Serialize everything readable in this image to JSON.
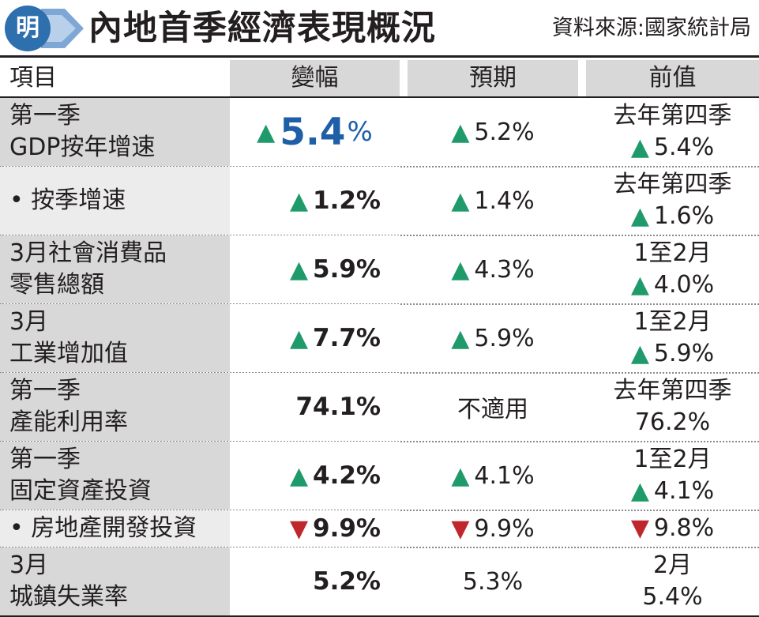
{
  "header": {
    "logo_char": "明",
    "title": "內地首季經濟表現概況",
    "source": "資料來源:國家統計局"
  },
  "colors": {
    "up": "#1e9a6b",
    "down": "#c0272d",
    "highlight": "#1f5fa8",
    "label_bg": "#d8d8d8"
  },
  "columns": {
    "item": "項目",
    "change": "變幅",
    "expected": "預期",
    "previous": "前值"
  },
  "rows": [
    {
      "label": [
        "第一季",
        "GDP按年增速"
      ],
      "change": {
        "dir": "up",
        "value": "5.4",
        "unit": "%"
      },
      "expected": {
        "dir": "up",
        "value": "5.2%"
      },
      "previous": {
        "period": "去年第四季",
        "dir": "up",
        "value": "5.4%"
      }
    },
    {
      "label": [
        "•  按季增速"
      ],
      "sub": true,
      "change": {
        "dir": "up",
        "value": "1.2%"
      },
      "expected": {
        "dir": "up",
        "value": "1.4%"
      },
      "previous": {
        "period": "去年第四季",
        "dir": "up",
        "value": "1.6%"
      }
    },
    {
      "label": [
        "3月社會消費品",
        "零售總額"
      ],
      "change": {
        "dir": "up",
        "value": "5.9%"
      },
      "expected": {
        "dir": "up",
        "value": "4.3%"
      },
      "previous": {
        "period": "1至2月",
        "dir": "up",
        "value": "4.0%"
      }
    },
    {
      "label": [
        "3月",
        "工業增加值"
      ],
      "change": {
        "dir": "up",
        "value": "7.7%"
      },
      "expected": {
        "dir": "up",
        "value": "5.9%"
      },
      "previous": {
        "period": "1至2月",
        "dir": "up",
        "value": "5.9%"
      }
    },
    {
      "label": [
        "第一季",
        "產能利用率"
      ],
      "change": {
        "dir": "none",
        "value": "74.1%"
      },
      "expected": {
        "dir": "none",
        "value": "不適用"
      },
      "previous": {
        "period": "去年第四季",
        "dir": "none",
        "value": "76.2%"
      }
    },
    {
      "label": [
        "第一季",
        "固定資產投資"
      ],
      "change": {
        "dir": "up",
        "value": "4.2%"
      },
      "expected": {
        "dir": "up",
        "value": "4.1%"
      },
      "previous": {
        "period": "1至2月",
        "dir": "up",
        "value": "4.1%"
      }
    },
    {
      "label": [
        "•  房地產開發投資"
      ],
      "sub": true,
      "change": {
        "dir": "down",
        "value": "9.9%"
      },
      "expected": {
        "dir": "down",
        "value": "9.9%"
      },
      "previous": {
        "period": "",
        "dir": "down",
        "value": "9.8%"
      }
    },
    {
      "label": [
        "3月",
        "城鎮失業率"
      ],
      "change": {
        "dir": "none",
        "value": "5.2%"
      },
      "expected": {
        "dir": "none",
        "value": "5.3%"
      },
      "previous": {
        "period": "2月",
        "dir": "none",
        "value": "5.4%"
      }
    }
  ]
}
